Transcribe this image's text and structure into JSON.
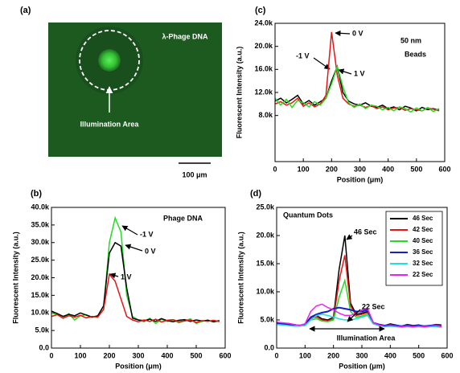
{
  "chart_data": [
    {
      "type": "image",
      "panel_label": "(a)",
      "label": "λ-Phage DNA",
      "annotation": "Illumination Area",
      "scale_bar_label": "100 μm"
    },
    {
      "type": "line",
      "panel_label": "(b)",
      "xlabel": "Position (μm)",
      "ylabel": "Fluorescent Intensity (a.u.)",
      "annotations": [
        "Phage DNA"
      ],
      "xlim": [
        0,
        600
      ],
      "xticks": [
        0,
        100,
        200,
        300,
        400,
        500,
        600
      ],
      "ylim": [
        0,
        40000
      ],
      "yticks": [
        {
          "value": 0,
          "label": "0.0"
        },
        {
          "value": 5000,
          "label": "5.0k"
        },
        {
          "value": 10000,
          "label": "10.0k"
        },
        {
          "value": 15000,
          "label": "15.0k"
        },
        {
          "value": 20000,
          "label": "20.0k"
        },
        {
          "value": 25000,
          "label": "25.0k"
        },
        {
          "value": 30000,
          "label": "30.0k"
        },
        {
          "value": 35000,
          "label": "35.0k"
        },
        {
          "value": 40000,
          "label": "40.0k"
        }
      ],
      "x": [
        0,
        20,
        40,
        60,
        80,
        100,
        120,
        140,
        160,
        180,
        200,
        220,
        240,
        260,
        280,
        300,
        320,
        340,
        360,
        380,
        400,
        420,
        440,
        460,
        480,
        500,
        520,
        540,
        560,
        580
      ],
      "series": [
        {
          "name": "-1 V",
          "color": "#22dd22",
          "values": [
            10000,
            9500,
            8500,
            9800,
            8000,
            9200,
            9500,
            8800,
            9000,
            11000,
            30000,
            37000,
            33000,
            15000,
            9000,
            8000,
            7500,
            8500,
            7000,
            8200,
            7600,
            8000,
            7200,
            7800,
            8300,
            7000,
            7600,
            8000,
            7400,
            7800
          ]
        },
        {
          "name": "0 V",
          "color": "#000000",
          "values": [
            10500,
            9800,
            9000,
            9600,
            9200,
            10000,
            9400,
            8800,
            9200,
            12000,
            27000,
            30000,
            29000,
            17000,
            8500,
            8000,
            7800,
            8200,
            7600,
            8400,
            7800,
            7500,
            7900,
            8100,
            7600,
            8000,
            7700,
            7900,
            7500,
            7800
          ]
        },
        {
          "name": "1 V",
          "color": "#ee1111",
          "values": [
            9000,
            9500,
            8500,
            9200,
            8800,
            9300,
            8600,
            9000,
            8800,
            11000,
            21000,
            19000,
            14000,
            9000,
            8000,
            7500,
            8000,
            7600,
            8200,
            7400,
            7900,
            8100,
            7500,
            7700,
            8000,
            7300,
            7800,
            7600,
            7900,
            7500
          ]
        }
      ]
    },
    {
      "type": "line",
      "panel_label": "(c)",
      "xlabel": "Position (μm)",
      "ylabel": "Fluorescent Intensity (a.u.)",
      "annotations": [
        "50 nm",
        "Beads"
      ],
      "xlim": [
        0,
        600
      ],
      "xticks": [
        0,
        100,
        200,
        300,
        400,
        500,
        600
      ],
      "ylim": [
        0,
        24000
      ],
      "yticks": [
        {
          "value": 8000,
          "label": "8.0k"
        },
        {
          "value": 12000,
          "label": "12.0k"
        },
        {
          "value": 16000,
          "label": "16.0k"
        },
        {
          "value": 20000,
          "label": "20.0k"
        },
        {
          "value": 24000,
          "label": "24.0k"
        }
      ],
      "x": [
        0,
        20,
        40,
        60,
        80,
        100,
        120,
        140,
        160,
        180,
        200,
        220,
        240,
        260,
        280,
        300,
        320,
        340,
        360,
        380,
        400,
        420,
        440,
        460,
        480,
        500,
        520,
        540,
        560,
        580
      ],
      "series": [
        {
          "name": "-1 V",
          "color": "#000000",
          "values": [
            10500,
            11000,
            10200,
            10800,
            11500,
            10000,
            10600,
            9800,
            10400,
            11000,
            14000,
            16500,
            12000,
            10500,
            10000,
            9800,
            10200,
            9600,
            9400,
            9800,
            9200,
            9500,
            9000,
            9600,
            9300,
            8800,
            9400,
            9000,
            9200,
            8900
          ]
        },
        {
          "name": "0 V",
          "color": "#ee1111",
          "values": [
            10000,
            10400,
            9800,
            10200,
            11000,
            9600,
            10200,
            9500,
            10000,
            11500,
            22500,
            15000,
            11000,
            10000,
            9600,
            9800,
            9400,
            9700,
            9200,
            9500,
            9000,
            9300,
            9400,
            8900,
            9200,
            9000,
            8800,
            9300,
            9100,
            8800
          ]
        },
        {
          "name": "1 V",
          "color": "#22dd22",
          "values": [
            11000,
            9800,
            10800,
            9400,
            10600,
            10200,
            9500,
            10400,
            9800,
            11000,
            13500,
            16500,
            13000,
            10200,
            9400,
            10000,
            9200,
            9800,
            9600,
            9000,
            9400,
            8800,
            9500,
            9200,
            8600,
            9300,
            8800,
            9400,
            8700,
            9200
          ]
        }
      ]
    },
    {
      "type": "line",
      "panel_label": "(d)",
      "xlabel": "Position (μm)",
      "ylabel": "Fluorescent Intensity (a.u.)",
      "annotations": [
        "Quantum Dots",
        "46 Sec",
        "22 Sec",
        "Illumination Area"
      ],
      "legend": "upper right",
      "xlim": [
        0,
        600
      ],
      "xticks": [
        0,
        100,
        200,
        300,
        400,
        500,
        600
      ],
      "ylim": [
        0,
        25000
      ],
      "yticks": [
        {
          "value": 0,
          "label": "0.0"
        },
        {
          "value": 5000,
          "label": "5.0k"
        },
        {
          "value": 10000,
          "label": "10.0k"
        },
        {
          "value": 15000,
          "label": "15.0k"
        },
        {
          "value": 20000,
          "label": "20.0k"
        },
        {
          "value": 25000,
          "label": "25.0k"
        }
      ],
      "x": [
        0,
        20,
        40,
        60,
        80,
        100,
        120,
        140,
        160,
        180,
        200,
        220,
        240,
        260,
        280,
        300,
        320,
        340,
        360,
        380,
        400,
        420,
        440,
        460,
        480,
        500,
        520,
        540,
        560,
        580
      ],
      "series": [
        {
          "name": "46 Sec",
          "color": "#000000",
          "values": [
            4500,
            4300,
            4400,
            4200,
            4000,
            4300,
            5500,
            5800,
            5200,
            5000,
            5500,
            14000,
            20000,
            8000,
            6000,
            6200,
            6500,
            4500,
            4200,
            4000,
            4300,
            4100,
            3900,
            4200,
            4000,
            4100,
            3900,
            4000,
            4200,
            4100
          ]
        },
        {
          "name": "42 Sec",
          "color": "#ee1111",
          "values": [
            4400,
            4200,
            4300,
            4100,
            4000,
            4200,
            5300,
            5500,
            5000,
            4800,
            5200,
            12000,
            16500,
            7500,
            5800,
            6000,
            6300,
            4400,
            4100,
            4000,
            4200,
            4000,
            3800,
            4100,
            3900,
            4000,
            3800,
            4000,
            4100,
            4000
          ]
        },
        {
          "name": "40 Sec",
          "color": "#22dd22",
          "values": [
            4300,
            4400,
            4200,
            4000,
            4100,
            4000,
            5000,
            5200,
            4800,
            4700,
            5000,
            9000,
            12000,
            6500,
            5500,
            5700,
            6000,
            4300,
            4000,
            3900,
            4100,
            3900,
            3800,
            4000,
            3900,
            3900,
            3800,
            3900,
            4000,
            3900
          ]
        },
        {
          "name": "36 Sec",
          "color": "#1122cc",
          "values": [
            4400,
            4300,
            4200,
            4100,
            4000,
            4100,
            5500,
            6000,
            6300,
            6500,
            7000,
            7200,
            7000,
            6800,
            6500,
            6500,
            6800,
            4500,
            4200,
            4000,
            4100,
            4000,
            3900,
            4000,
            3900,
            4000,
            3900,
            4000,
            4000,
            3900
          ]
        },
        {
          "name": "32 Sec",
          "color": "#22dddd",
          "values": [
            4200,
            4100,
            4000,
            3900,
            3900,
            4000,
            5000,
            5800,
            6000,
            5800,
            5500,
            5200,
            5000,
            5000,
            5200,
            5500,
            5800,
            4300,
            4000,
            3800,
            3900,
            3800,
            3700,
            3800,
            3700,
            3800,
            3700,
            3800,
            3800,
            3700
          ]
        },
        {
          "name": "22 Sec",
          "color": "#ee22ee",
          "values": [
            4600,
            4500,
            4400,
            4200,
            4000,
            4300,
            6500,
            7500,
            7800,
            7200,
            6800,
            6200,
            5800,
            5800,
            6200,
            6800,
            7000,
            4500,
            4100,
            3900,
            4000,
            3900,
            3800,
            3900,
            3800,
            3900,
            3800,
            3900,
            4000,
            3800
          ]
        }
      ]
    }
  ]
}
